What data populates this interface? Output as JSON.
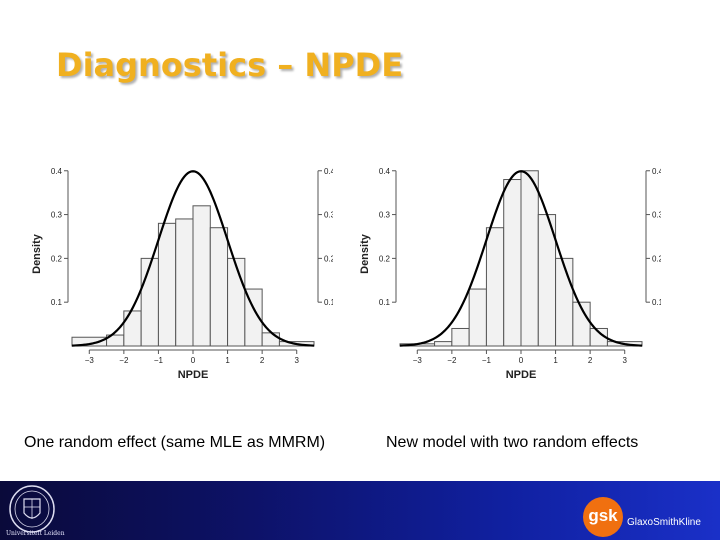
{
  "title": "Diagnostics – NPDE",
  "captions": {
    "left": "One random effect (same MLE as MMRM)",
    "right": "New model with two random effects"
  },
  "footer": {
    "seal_text": "Universiteit Leiden",
    "gsk_logo_text": "gsk",
    "gsk_name": "GlaxoSmithKline"
  },
  "colors": {
    "title": "#f0b020",
    "footer": "#0d1268",
    "gsk": "#f07010",
    "bar_fill": "#f2f2f2"
  },
  "chart_data": [
    {
      "type": "bar",
      "xlabel": "NPDE",
      "ylabel": "Density",
      "xlim": [
        -3.5,
        3.5
      ],
      "ylim": [
        0,
        0.42
      ],
      "xticks": [
        -3,
        -2,
        -1,
        0,
        1,
        2,
        3
      ],
      "yticks": [
        0.1,
        0.2,
        0.3,
        0.4
      ],
      "bins": [
        {
          "x0": -3.5,
          "x1": -2.5,
          "density": 0.02
        },
        {
          "x0": -2.5,
          "x1": -2.0,
          "density": 0.025
        },
        {
          "x0": -2.0,
          "x1": -1.5,
          "density": 0.08
        },
        {
          "x0": -1.5,
          "x1": -1.0,
          "density": 0.2
        },
        {
          "x0": -1.0,
          "x1": -0.5,
          "density": 0.28
        },
        {
          "x0": -0.5,
          "x1": 0.0,
          "density": 0.29
        },
        {
          "x0": 0.0,
          "x1": 0.5,
          "density": 0.32
        },
        {
          "x0": 0.5,
          "x1": 1.0,
          "density": 0.27
        },
        {
          "x0": 1.0,
          "x1": 1.5,
          "density": 0.2
        },
        {
          "x0": 1.5,
          "x1": 2.0,
          "density": 0.13
        },
        {
          "x0": 2.0,
          "x1": 2.5,
          "density": 0.03
        },
        {
          "x0": 2.5,
          "x1": 3.5,
          "density": 0.01
        }
      ],
      "curve": "standard-normal-density"
    },
    {
      "type": "bar",
      "xlabel": "NPDE",
      "ylabel": "Density",
      "xlim": [
        -3.5,
        3.5
      ],
      "ylim": [
        0,
        0.42
      ],
      "xticks": [
        -3,
        -2,
        -1,
        0,
        1,
        2,
        3
      ],
      "yticks": [
        0.1,
        0.2,
        0.3,
        0.4
      ],
      "bins": [
        {
          "x0": -3.5,
          "x1": -2.5,
          "density": 0.005
        },
        {
          "x0": -2.5,
          "x1": -2.0,
          "density": 0.01
        },
        {
          "x0": -2.0,
          "x1": -1.5,
          "density": 0.04
        },
        {
          "x0": -1.5,
          "x1": -1.0,
          "density": 0.13
        },
        {
          "x0": -1.0,
          "x1": -0.5,
          "density": 0.27
        },
        {
          "x0": -0.5,
          "x1": 0.0,
          "density": 0.38
        },
        {
          "x0": 0.0,
          "x1": 0.5,
          "density": 0.4
        },
        {
          "x0": 0.5,
          "x1": 1.0,
          "density": 0.3
        },
        {
          "x0": 1.0,
          "x1": 1.5,
          "density": 0.2
        },
        {
          "x0": 1.5,
          "x1": 2.0,
          "density": 0.1
        },
        {
          "x0": 2.0,
          "x1": 2.5,
          "density": 0.04
        },
        {
          "x0": 2.5,
          "x1": 3.5,
          "density": 0.01
        }
      ],
      "curve": "standard-normal-density"
    }
  ]
}
